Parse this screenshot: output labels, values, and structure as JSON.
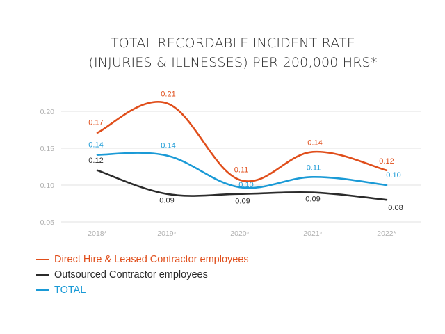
{
  "chart_data": {
    "type": "line",
    "title_line1": "TOTAL RECORDABLE INCIDENT RATE",
    "title_line2": "(INJURIES & ILLNESSES) PER 200,000 HRS*",
    "categories": [
      "2018*",
      "2019*",
      "2020*",
      "2021*",
      "2022*"
    ],
    "yticks": [
      "0.20",
      "0.15",
      "0.10",
      "0.05"
    ],
    "ylim": [
      0.05,
      0.2
    ],
    "grid": true,
    "series": [
      {
        "name": "Direct Hire & Leased Contractor employees",
        "color": "#e04e1b",
        "values": [
          0.17,
          0.21,
          0.11,
          0.14,
          0.12
        ],
        "labels": [
          "0.17",
          "0.21",
          "0.11",
          "0.14",
          "0.12"
        ],
        "curve": [
          0.171,
          0.211,
          0.107,
          0.145,
          0.12
        ]
      },
      {
        "name": "Outsourced Contractor employees",
        "color": "#2b2b2b",
        "values": [
          0.12,
          0.09,
          0.09,
          0.09,
          0.08
        ],
        "labels": [
          "0.12",
          "0.09",
          "0.09",
          "0.09",
          "0.08"
        ],
        "curve": [
          0.12,
          0.088,
          0.088,
          0.09,
          0.08
        ]
      },
      {
        "name": "TOTAL",
        "color": "#1a9ad6",
        "values": [
          0.14,
          0.14,
          0.1,
          0.11,
          0.1
        ],
        "labels": [
          "0.14",
          "0.14",
          "0.10",
          "0.11",
          "0.10"
        ],
        "curve": [
          0.141,
          0.14,
          0.097,
          0.111,
          0.1
        ]
      }
    ]
  }
}
